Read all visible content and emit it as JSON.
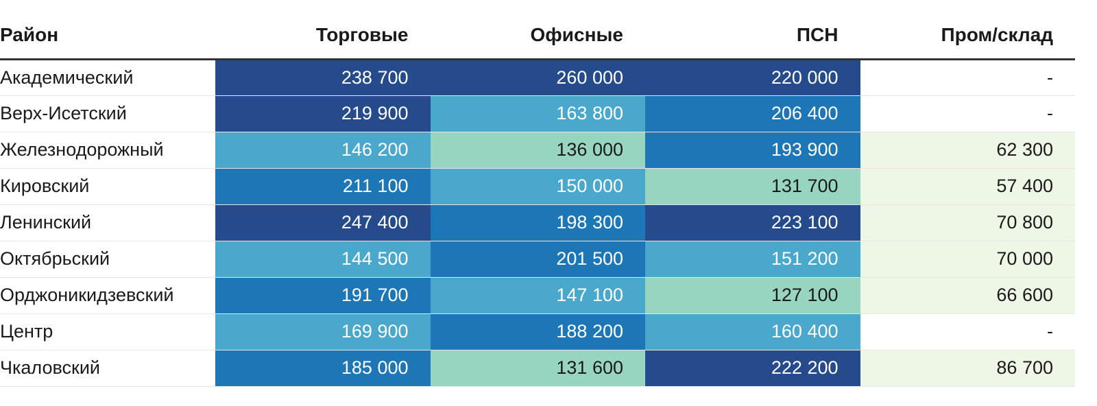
{
  "chart_data": {
    "type": "table",
    "columns": [
      "Район",
      "Торговые",
      "Офисные",
      "ПСН",
      "Пром/склад"
    ],
    "rows": [
      {
        "district": "Академический",
        "values": [
          "238 700",
          "260 000",
          "220 000",
          "-"
        ]
      },
      {
        "district": "Верх-Исетский",
        "values": [
          "219 900",
          "163 800",
          "206 400",
          "-"
        ]
      },
      {
        "district": "Железнодорожный",
        "values": [
          "146 200",
          "136 000",
          "193 900",
          "62 300"
        ]
      },
      {
        "district": "Кировский",
        "values": [
          "211 100",
          "150 000",
          "131 700",
          "57 400"
        ]
      },
      {
        "district": "Ленинский",
        "values": [
          "247 400",
          "198 300",
          "223 100",
          "70 800"
        ]
      },
      {
        "district": "Октябрьский",
        "values": [
          "144 500",
          "201 500",
          "151 200",
          "70 000"
        ]
      },
      {
        "district": "Орджоникидзевский",
        "values": [
          "191 700",
          "147 100",
          "127 100",
          "66 600"
        ]
      },
      {
        "district": "Центр",
        "values": [
          "169 900",
          "188 200",
          "160 400",
          "-"
        ]
      },
      {
        "district": "Чкаловский",
        "values": [
          "185 000",
          "131 600",
          "222 200",
          "86 700"
        ]
      }
    ],
    "colors": {
      "tier1": "#254b8c",
      "tier2": "#1d77b7",
      "tier3": "#49a8cb",
      "tier4": "#98d5c1",
      "tier5": "#eef7e6",
      "empty": "#ffffff",
      "text_light": "#ffffff",
      "text_dark": "#1a1a1a"
    }
  }
}
